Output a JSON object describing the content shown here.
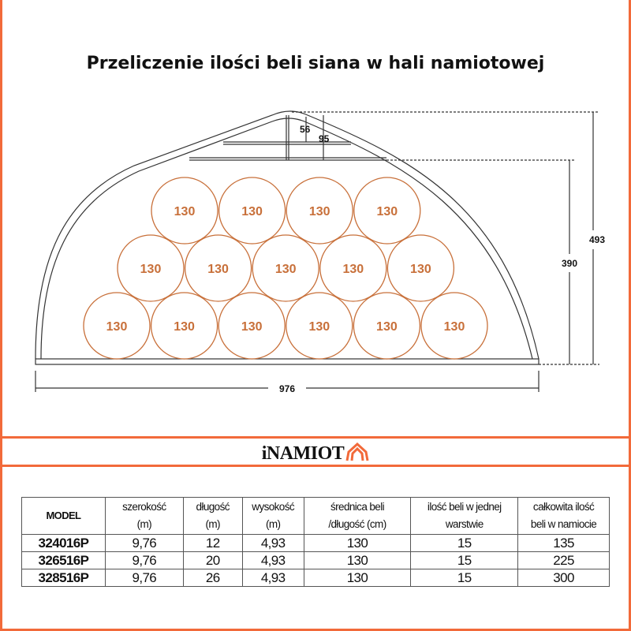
{
  "title": "Przeliczenie ilości beli siana w hali namiotowej",
  "diagram": {
    "bale_label": "130",
    "rows": [
      [
        "130",
        "130",
        "130",
        "130"
      ],
      [
        "130",
        "130",
        "130",
        "130",
        "130"
      ],
      [
        "130",
        "130",
        "130",
        "130",
        "130",
        "130"
      ]
    ],
    "dimensions": {
      "width": "976",
      "total_height": "493",
      "stack_height": "390",
      "top_gap_inner": "56",
      "top_gap": "95"
    },
    "colors": {
      "bale": "#c8703a",
      "outline": "#333333"
    }
  },
  "logo": {
    "text": "iNAMIOT",
    "accent": "#f26a3a"
  },
  "table": {
    "headers": [
      "MODEL",
      "szerokość\n(m)",
      "długość\n(m)",
      "wysokość\n(m)",
      "średnica beli\n/długość (cm)",
      "ilość beli w jednej\nwarstwie",
      "całkowita ilość\nbeli w namiocie"
    ],
    "rows": [
      [
        "324016P",
        "9,76",
        "12",
        "4,93",
        "130",
        "15",
        "135"
      ],
      [
        "326516P",
        "9,76",
        "20",
        "4,93",
        "130",
        "15",
        "225"
      ],
      [
        "328516P",
        "9,76",
        "26",
        "4,93",
        "130",
        "15",
        "300"
      ]
    ]
  }
}
